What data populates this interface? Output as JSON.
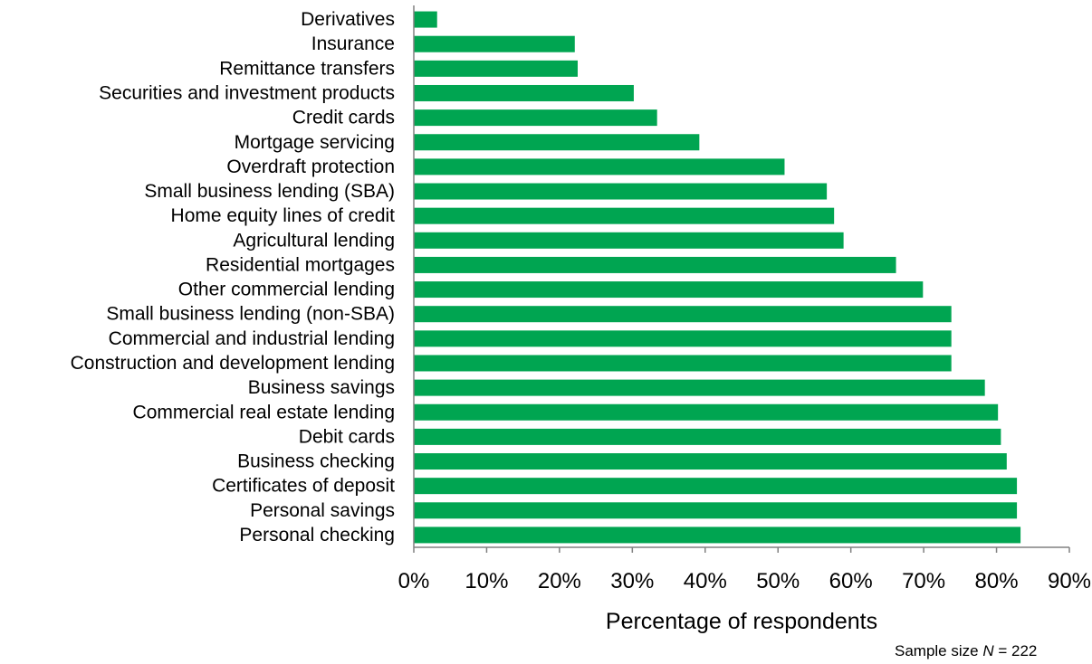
{
  "chart_data": {
    "type": "bar",
    "orientation": "horizontal",
    "categories": [
      "Derivatives",
      "Insurance",
      "Remittance transfers",
      "Securities and investment products",
      "Credit cards",
      "Mortgage servicing",
      "Overdraft protection",
      "Small business lending (SBA)",
      "Home equity lines of credit",
      "Agricultural lending",
      "Residential mortgages",
      "Other commercial lending",
      "Small business lending (non-SBA)",
      "Commercial and industrial lending",
      "Construction and development lending",
      "Business savings",
      "Commercial real estate lending",
      "Debit cards",
      "Business checking",
      "Certificates of deposit",
      "Personal savings",
      "Personal checking"
    ],
    "values": [
      3.2,
      22.1,
      22.5,
      30.2,
      33.4,
      39.2,
      50.9,
      56.7,
      57.7,
      59.0,
      66.2,
      69.9,
      73.8,
      73.8,
      73.8,
      78.4,
      80.2,
      80.6,
      81.4,
      82.8,
      82.8,
      83.3
    ],
    "xlabel": "Percentage of respondents",
    "xlim": [
      0,
      90
    ],
    "xticks": [
      "0%",
      "10%",
      "20%",
      "30%",
      "40%",
      "50%",
      "60%",
      "70%",
      "80%",
      "90%"
    ],
    "grid": false,
    "bar_color": "#00A551"
  },
  "note": {
    "prefix": "Sample size ",
    "variable": "N",
    "suffix": " = 222"
  }
}
